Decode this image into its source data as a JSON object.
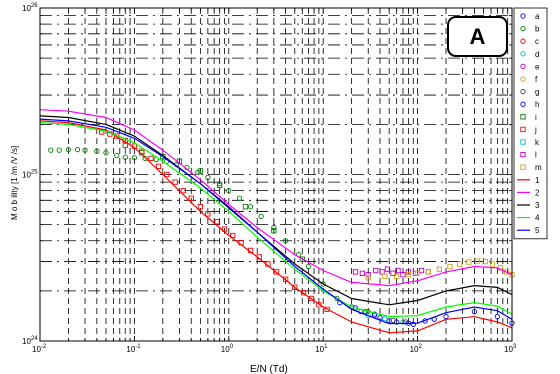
{
  "chart_data": {
    "type": "scatter",
    "panel_label": "A",
    "xlabel": "E/N (Td)",
    "ylabel": "M o b ility [1 /m /V /s]",
    "xscale": "log",
    "yscale": "log",
    "xlim": [
      0.01,
      1000
    ],
    "ylim": [
      1e+24,
      1e+26
    ],
    "x_tick_labels": [
      {
        "base": "10",
        "exp": "-2",
        "value": 0.01
      },
      {
        "base": "10",
        "exp": "-1",
        "value": 0.1
      },
      {
        "base": "10",
        "exp": "0",
        "value": 1
      },
      {
        "base": "10",
        "exp": "1",
        "value": 10
      },
      {
        "base": "10",
        "exp": "2",
        "value": 100
      },
      {
        "base": "10",
        "exp": "3",
        "value": 1000
      }
    ],
    "y_tick_labels": [
      {
        "base": "10",
        "exp": "24",
        "value": 1e+24
      },
      {
        "base": "10",
        "exp": "25",
        "value": 1e+25
      },
      {
        "base": "10",
        "exp": "26",
        "value": 1e+26
      }
    ],
    "grid": "dashed, major and minor",
    "legend_position": "right, outside",
    "series": [
      {
        "name": "a",
        "kind": "marker",
        "marker": "circle",
        "color": "#0000ff",
        "points": [
          [
            20,
            1.6e+24
          ],
          [
            28,
            1.5e+24
          ],
          [
            40,
            1.38e+24
          ],
          [
            50,
            1.32e+24
          ],
          [
            60,
            1.3e+24
          ],
          [
            80,
            1.28e+24
          ],
          [
            120,
            1.32e+24
          ],
          [
            200,
            1.4e+24
          ],
          [
            400,
            1.5e+24
          ],
          [
            700,
            1.4e+24
          ],
          [
            1000,
            1.28e+24
          ]
        ]
      },
      {
        "name": "b",
        "kind": "marker",
        "marker": "circle",
        "color": "#008000",
        "points": [
          [
            0.013,
            1.4e+25
          ],
          [
            0.016,
            1.4e+25
          ],
          [
            0.02,
            1.41e+25
          ],
          [
            0.025,
            1.41e+25
          ],
          [
            0.03,
            1.4e+25
          ],
          [
            0.04,
            1.38e+25
          ],
          [
            0.05,
            1.35e+25
          ],
          [
            0.065,
            1.3e+25
          ],
          [
            0.08,
            1.27e+25
          ],
          [
            0.1,
            1.26e+25
          ],
          [
            0.13,
            1.25e+25
          ],
          [
            0.17,
            1.23e+25
          ],
          [
            0.22,
            1.2e+25
          ],
          [
            0.28,
            1.15e+25
          ],
          [
            0.36,
            1.1e+25
          ],
          [
            0.47,
            1.03e+25
          ],
          [
            0.6,
            9.6e+24
          ],
          [
            0.8,
            8.8e+24
          ],
          [
            1.0,
            8e+24
          ],
          [
            1.3,
            7.2e+24
          ],
          [
            1.7,
            6.4e+24
          ],
          [
            2.2,
            5.6e+24
          ],
          [
            3.0,
            4.8e+24
          ],
          [
            4.0,
            4e+24
          ],
          [
            5.5,
            3.3e+24
          ],
          [
            7.0,
            2.8e+24
          ],
          [
            10,
            2.2e+24
          ],
          [
            14,
            1.8e+24
          ],
          [
            20,
            1.6e+24
          ],
          [
            30,
            1.5e+24
          ]
        ]
      },
      {
        "name": "c",
        "kind": "marker",
        "marker": "circle",
        "color": "#ff0000",
        "points": []
      },
      {
        "name": "d",
        "kind": "marker",
        "marker": "circle",
        "color": "#00bfbf",
        "points": [
          [
            30,
            1.42e+24
          ],
          [
            45,
            1.36e+24
          ],
          [
            70,
            1.3e+24
          ]
        ]
      },
      {
        "name": "e",
        "kind": "marker",
        "marker": "circle",
        "color": "#bf00bf",
        "points": []
      },
      {
        "name": "f",
        "kind": "marker",
        "marker": "circle",
        "color": "#d4a017",
        "points": []
      },
      {
        "name": "g",
        "kind": "marker",
        "marker": "circle",
        "color": "#404040",
        "points": [
          [
            25,
            1.5e+24
          ],
          [
            35,
            1.42e+24
          ],
          [
            55,
            1.33e+24
          ],
          [
            75,
            1.3e+24
          ]
        ]
      },
      {
        "name": "h",
        "kind": "marker",
        "marker": "circle",
        "color": "#0000ff",
        "points": [
          [
            15,
            1.7e+24
          ],
          [
            22,
            1.58e+24
          ],
          [
            35,
            1.45e+24
          ],
          [
            90,
            1.26e+24
          ],
          [
            150,
            1.35e+24
          ]
        ]
      },
      {
        "name": "i",
        "kind": "marker",
        "marker": "square",
        "color": "#008000",
        "points": [
          [
            0.08,
            1.5e+25
          ],
          [
            0.12,
            1.35e+25
          ],
          [
            0.2,
            1.28e+25
          ],
          [
            0.3,
            1.2e+25
          ],
          [
            0.5,
            1.05e+25
          ],
          [
            0.8,
            8.6e+24
          ],
          [
            1.5,
            6.4e+24
          ],
          [
            3.0,
            4.6e+24
          ],
          [
            6.0,
            3.1e+24
          ]
        ]
      },
      {
        "name": "j",
        "kind": "marker",
        "marker": "square",
        "color": "#ff0000",
        "points": [
          [
            0.045,
            1.8e+25
          ],
          [
            0.055,
            1.75e+25
          ],
          [
            0.065,
            1.7e+25
          ],
          [
            0.08,
            1.6e+25
          ],
          [
            0.1,
            1.48e+25
          ],
          [
            0.12,
            1.38e+25
          ],
          [
            0.15,
            1.25e+25
          ],
          [
            0.18,
            1.12e+25
          ],
          [
            0.22,
            1e+25
          ],
          [
            0.27,
            9e+24
          ],
          [
            0.33,
            8e+24
          ],
          [
            0.4,
            7.2e+24
          ],
          [
            0.5,
            6.4e+24
          ],
          [
            0.6,
            5.8e+24
          ],
          [
            0.75,
            5.2e+24
          ],
          [
            0.9,
            4.7e+24
          ],
          [
            1.1,
            4.3e+24
          ],
          [
            1.35,
            3.9e+24
          ],
          [
            1.7,
            3.5e+24
          ],
          [
            2.1,
            3.2e+24
          ],
          [
            2.6,
            2.9e+24
          ],
          [
            3.2,
            2.6e+24
          ],
          [
            4.0,
            2.35e+24
          ],
          [
            5.0,
            2.1e+24
          ],
          [
            6.2,
            1.95e+24
          ],
          [
            7.5,
            1.8e+24
          ],
          [
            9.0,
            1.65e+24
          ],
          [
            11,
            1.55e+24
          ]
        ]
      },
      {
        "name": "k",
        "kind": "marker",
        "marker": "square",
        "color": "#00bfbf",
        "points": []
      },
      {
        "name": "l",
        "kind": "marker",
        "marker": "square",
        "color": "#bf00bf",
        "points": [
          [
            22,
            2.6e+24
          ],
          [
            26,
            2.55e+24
          ],
          [
            30,
            2.5e+24
          ],
          [
            36,
            2.65e+24
          ],
          [
            42,
            2.6e+24
          ],
          [
            48,
            2.7e+24
          ],
          [
            55,
            2.55e+24
          ],
          [
            62,
            2.65e+24
          ],
          [
            70,
            2.5e+24
          ],
          [
            80,
            2.6e+24
          ],
          [
            95,
            2.55e+24
          ],
          [
            110,
            2.65e+24
          ],
          [
            130,
            2.6e+24
          ]
        ]
      },
      {
        "name": "m",
        "kind": "marker",
        "marker": "square",
        "color": "#d4a017",
        "points": [
          [
            30,
            2.4e+24
          ],
          [
            45,
            2.45e+24
          ],
          [
            60,
            2.45e+24
          ],
          [
            80,
            2.5e+24
          ],
          [
            100,
            2.55e+24
          ],
          [
            130,
            2.6e+24
          ],
          [
            170,
            2.7e+24
          ],
          [
            220,
            2.8e+24
          ],
          [
            280,
            2.9e+24
          ],
          [
            350,
            2.98e+24
          ],
          [
            430,
            3.02e+24
          ],
          [
            520,
            3e+24
          ],
          [
            620,
            2.9e+24
          ],
          [
            750,
            2.75e+24
          ],
          [
            880,
            2.6e+24
          ],
          [
            1000,
            2.5e+24
          ]
        ]
      },
      {
        "name": "1",
        "kind": "line",
        "color": "#ff0000",
        "points": [
          [
            0.01,
            2.1e+25
          ],
          [
            0.02,
            2.05e+25
          ],
          [
            0.05,
            1.85e+25
          ],
          [
            0.1,
            1.45e+25
          ],
          [
            0.2,
            1e+25
          ],
          [
            0.5,
            6e+24
          ],
          [
            1,
            4.3e+24
          ],
          [
            2,
            3.2e+24
          ],
          [
            5,
            2.1e+24
          ],
          [
            10,
            1.6e+24
          ],
          [
            20,
            1.3e+24
          ],
          [
            50,
            1.12e+24
          ],
          [
            100,
            1.15e+24
          ],
          [
            200,
            1.35e+24
          ],
          [
            400,
            1.4e+24
          ],
          [
            700,
            1.3e+24
          ],
          [
            1000,
            1.2e+24
          ]
        ]
      },
      {
        "name": "2",
        "kind": "line",
        "color": "#ff00ff",
        "points": [
          [
            0.01,
            2.45e+25
          ],
          [
            0.02,
            2.4e+25
          ],
          [
            0.05,
            2.2e+25
          ],
          [
            0.1,
            1.85e+25
          ],
          [
            0.2,
            1.4e+25
          ],
          [
            0.5,
            9.3e+24
          ],
          [
            1,
            6.6e+24
          ],
          [
            2,
            4.8e+24
          ],
          [
            5,
            3.3e+24
          ],
          [
            10,
            2.65e+24
          ],
          [
            20,
            2.25e+24
          ],
          [
            50,
            2.15e+24
          ],
          [
            100,
            2.3e+24
          ],
          [
            200,
            2.6e+24
          ],
          [
            400,
            2.8e+24
          ],
          [
            700,
            2.75e+24
          ],
          [
            1000,
            2.5e+24
          ]
        ]
      },
      {
        "name": "3",
        "kind": "line",
        "color": "#000000",
        "points": [
          [
            0.01,
            2.25e+25
          ],
          [
            0.02,
            2.2e+25
          ],
          [
            0.05,
            2e+25
          ],
          [
            0.1,
            1.7e+25
          ],
          [
            0.2,
            1.3e+25
          ],
          [
            0.5,
            8.8e+24
          ],
          [
            1,
            6.3e+24
          ],
          [
            2,
            4.5e+24
          ],
          [
            5,
            2.9e+24
          ],
          [
            10,
            2.2e+24
          ],
          [
            20,
            1.8e+24
          ],
          [
            50,
            1.65e+24
          ],
          [
            100,
            1.75e+24
          ],
          [
            200,
            2e+24
          ],
          [
            400,
            2.15e+24
          ],
          [
            700,
            2.1e+24
          ],
          [
            1000,
            1.9e+24
          ]
        ]
      },
      {
        "name": "4",
        "kind": "line",
        "color": "#00ff00",
        "points": [
          [
            0.01,
            2.05e+25
          ],
          [
            0.02,
            2e+25
          ],
          [
            0.05,
            1.82e+25
          ],
          [
            0.1,
            1.55e+25
          ],
          [
            0.2,
            1.2e+25
          ],
          [
            0.5,
            8.3e+24
          ],
          [
            1,
            6e+24
          ],
          [
            2,
            4.2e+24
          ],
          [
            5,
            2.7e+24
          ],
          [
            10,
            2e+24
          ],
          [
            20,
            1.6e+24
          ],
          [
            50,
            1.4e+24
          ],
          [
            100,
            1.42e+24
          ],
          [
            200,
            1.6e+24
          ],
          [
            400,
            1.7e+24
          ],
          [
            700,
            1.62e+24
          ],
          [
            1000,
            1.45e+24
          ]
        ]
      },
      {
        "name": "5",
        "kind": "line",
        "color": "#0000ff",
        "points": [
          [
            0.01,
            2.15e+25
          ],
          [
            0.02,
            2.1e+25
          ],
          [
            0.05,
            1.92e+25
          ],
          [
            0.1,
            1.65e+25
          ],
          [
            0.2,
            1.28e+25
          ],
          [
            0.5,
            8.8e+24
          ],
          [
            1,
            6.4e+24
          ],
          [
            2,
            4.5e+24
          ],
          [
            5,
            2.8e+24
          ],
          [
            10,
            2.05e+24
          ],
          [
            20,
            1.55e+24
          ],
          [
            50,
            1.27e+24
          ],
          [
            100,
            1.28e+24
          ],
          [
            200,
            1.48e+24
          ],
          [
            400,
            1.6e+24
          ],
          [
            700,
            1.52e+24
          ],
          [
            1000,
            1.35e+24
          ]
        ]
      }
    ]
  }
}
